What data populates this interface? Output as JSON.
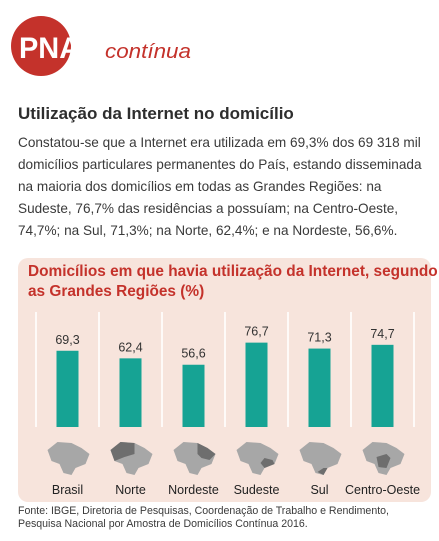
{
  "logo": {
    "primary_text": "PNAD",
    "secondary_text": "contínua",
    "brand_color": "#c4322b"
  },
  "article": {
    "title": "Utilização da Internet no domicílio",
    "body": "Constatou-se que a Internet era utilizada em 69,3% dos 69 318 mil domicílios particulares permanentes do País, estando disseminada na maioria dos domicílios em todas as Grandes Regiões: na Sudeste, 76,7% das residências a possuíam; na Centro-Oeste, 74,7%; na Sul, 71,3%; na Norte, 62,4%; e na Nordeste, 56,6%."
  },
  "chart_data": {
    "type": "bar",
    "title": "Domicílios em que havia utilização da Internet, segundo as Grandes Regiões (%)",
    "categories": [
      "Brasil",
      "Norte",
      "Nordeste",
      "Sudeste",
      "Sul",
      "Centro-Oeste"
    ],
    "values": [
      69.3,
      62.4,
      56.6,
      76.7,
      71.3,
      74.7
    ],
    "value_labels": [
      "69,3",
      "62,4",
      "56,6",
      "76,7",
      "71,3",
      "74,7"
    ],
    "icons": [
      "brazil-map-icon",
      "norte-region-map-icon",
      "nordeste-region-map-icon",
      "sudeste-region-map-icon",
      "sul-region-map-icon",
      "centro-oeste-region-map-icon"
    ],
    "xlabel": "",
    "ylabel": "",
    "ylim": [
      0,
      100
    ],
    "grid": false,
    "bar_color": "#16a394",
    "panel_color": "#f7e4dc",
    "title_color": "#c4322b",
    "map_color": "#a7a7a7",
    "map_highlight_color": "#6e6e6e"
  },
  "source": {
    "line1": "Fonte: IBGE, Diretoria de Pesquisas, Coordenação de Trabalho e Rendimento,",
    "line2": "Pesquisa Nacional por Amostra de Domicílios Contínua 2016."
  }
}
